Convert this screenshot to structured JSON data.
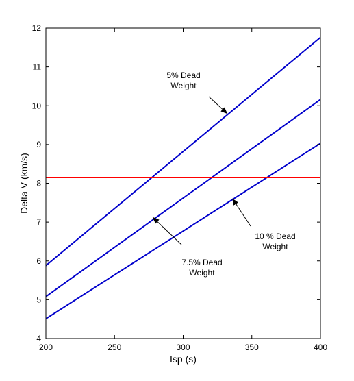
{
  "chart_data": {
    "type": "line",
    "title": "",
    "xlabel": "Isp (s)",
    "ylabel": "Delta V (km/s)",
    "xlim": [
      200,
      400
    ],
    "ylim": [
      4,
      12
    ],
    "xticks": [
      200,
      250,
      300,
      350,
      400
    ],
    "yticks": [
      4,
      5,
      6,
      7,
      8,
      9,
      10,
      11,
      12
    ],
    "grid": false,
    "legend": "none",
    "series": [
      {
        "x": [
          200,
          400
        ],
        "y": [
          5.88,
          11.76
        ],
        "color": "#0000cc"
      },
      {
        "x": [
          200,
          400
        ],
        "y": [
          5.08,
          10.16
        ],
        "color": "#0000cc"
      },
      {
        "x": [
          200,
          400
        ],
        "y": [
          4.51,
          9.03
        ],
        "color": "#0000cc"
      },
      {
        "x": [
          200,
          400
        ],
        "y": [
          8.15,
          8.15
        ],
        "color": "#ff0000"
      }
    ],
    "annotations": [
      {
        "lines": [
          "5% Dead",
          "Weight"
        ],
        "point": [
          332,
          9.8
        ]
      },
      {
        "lines": [
          "7.5% Dead",
          "Weight"
        ],
        "point": [
          278,
          7.12
        ]
      },
      {
        "lines": [
          "10 % Dead",
          "Weight"
        ],
        "point": [
          336,
          7.6
        ]
      }
    ]
  }
}
